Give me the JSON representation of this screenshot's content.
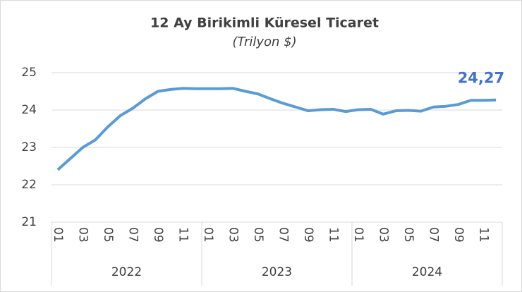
{
  "chart_data": {
    "type": "line",
    "title": "12 Ay Birikimli Küresel Ticaret",
    "subtitle": "(Trilyon $)",
    "categories": [
      "01",
      null,
      "03",
      null,
      "05",
      null,
      "07",
      null,
      "09",
      null,
      "11",
      null,
      "01",
      null,
      "03",
      null,
      "05",
      null,
      "07",
      null,
      "09",
      null,
      "11",
      null,
      "01",
      null,
      "03",
      null,
      "05",
      null,
      "07",
      null,
      "09",
      null,
      "11",
      null
    ],
    "year_groups": [
      "2022",
      "2023",
      "2024"
    ],
    "series": [
      {
        "name": "12 Ay Birikimli Küresel Ticaret",
        "color": "#5b9bd5",
        "values": [
          22.4,
          22.7,
          23.0,
          23.2,
          23.55,
          23.85,
          24.05,
          24.3,
          24.5,
          24.55,
          24.58,
          24.57,
          24.57,
          24.57,
          24.58,
          24.5,
          24.43,
          24.3,
          24.18,
          24.08,
          23.98,
          24.01,
          24.02,
          23.96,
          24.01,
          24.02,
          23.89,
          23.98,
          23.99,
          23.97,
          24.08,
          24.1,
          24.15,
          24.26,
          24.26,
          24.27
        ],
        "value_labels": [
          null,
          null,
          null,
          null,
          null,
          null,
          null,
          null,
          null,
          null,
          null,
          null,
          null,
          null,
          null,
          null,
          null,
          null,
          null,
          null,
          null,
          null,
          null,
          null,
          null,
          null,
          null,
          null,
          null,
          null,
          null,
          null,
          null,
          null,
          null,
          "24,27"
        ]
      }
    ],
    "value_label_color": "#4472c4",
    "ylim": [
      21,
      25
    ],
    "yticks": [
      21,
      22,
      23,
      24,
      25
    ],
    "grid": true
  }
}
